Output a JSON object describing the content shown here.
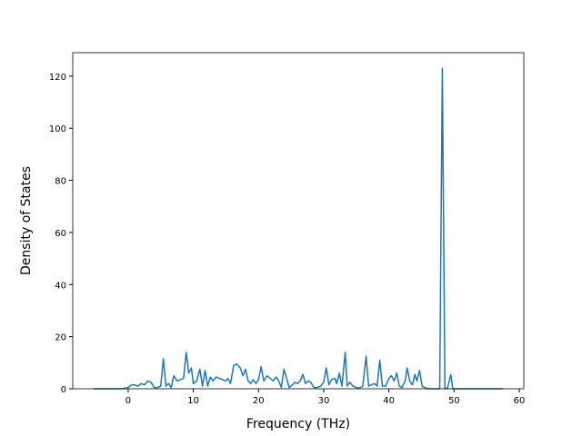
{
  "chart_data": {
    "type": "line",
    "xlabel": "Frequency (THz)",
    "ylabel": "Density of States",
    "x": [
      -5.3,
      -3,
      -1,
      0,
      0.5,
      1,
      1.5,
      2,
      2.5,
      3,
      3.5,
      4,
      4.5,
      5,
      5.4,
      5.8,
      6.2,
      6.6,
      7,
      7.5,
      8,
      8.5,
      8.9,
      9.3,
      9.7,
      10,
      10.5,
      11,
      11.4,
      11.8,
      12.2,
      12.6,
      13,
      13.5,
      14,
      14.5,
      15,
      15.3,
      15.7,
      16.2,
      16.7,
      17.2,
      17.6,
      18,
      18.4,
      18.8,
      19.2,
      19.6,
      20,
      20.4,
      20.8,
      21.3,
      21.8,
      22.2,
      22.7,
      23.1,
      23.5,
      23.9,
      24.3,
      24.7,
      25.2,
      25.6,
      26,
      26.4,
      26.8,
      27.2,
      27.6,
      28,
      28.5,
      29,
      29.5,
      30,
      30.4,
      30.8,
      31.2,
      31.7,
      32,
      32.4,
      32.8,
      33.3,
      33.6,
      34,
      34.5,
      35,
      35.5,
      36,
      36.5,
      36.9,
      37.3,
      37.8,
      38.2,
      38.6,
      39,
      39.5,
      40,
      40.4,
      40.8,
      41.2,
      41.6,
      42,
      42.5,
      42.8,
      43.2,
      43.6,
      44,
      44.3,
      44.7,
      45.1,
      45.5,
      46,
      47,
      47.8,
      48.2,
      48.6,
      49,
      49.5,
      49.8,
      50.5,
      57.5
    ],
    "series": [
      {
        "color": "#1f77b4",
        "values": [
          0,
          0,
          0,
          0.5,
          1.5,
          1.5,
          1,
          2,
          1.5,
          3,
          2.5,
          0.5,
          0.5,
          1,
          11.5,
          1,
          2,
          0.5,
          5,
          3,
          3.5,
          4,
          14,
          6,
          8,
          2,
          3,
          7.5,
          1,
          7,
          1,
          4.5,
          3,
          4.5,
          4,
          3.5,
          3,
          4,
          2,
          9,
          9.5,
          8,
          5,
          7.5,
          3,
          2,
          3.5,
          2,
          3.5,
          8.5,
          3,
          5,
          4,
          3,
          4.5,
          3,
          0.5,
          7.5,
          4,
          0.5,
          1.5,
          2.5,
          2,
          3,
          5.5,
          2,
          3,
          2.5,
          0.5,
          0.5,
          1,
          2.5,
          8,
          1.5,
          3.5,
          4,
          2,
          6,
          1,
          14,
          1,
          2.5,
          1,
          0.5,
          0.3,
          1,
          12.5,
          1,
          1.5,
          2,
          1,
          11,
          1,
          1,
          4,
          5,
          3,
          6,
          1,
          0.5,
          3,
          8,
          3,
          1.5,
          5.5,
          3,
          7,
          1,
          0.5,
          0,
          0,
          0,
          123,
          0,
          0.3,
          5.5,
          0,
          0,
          0
        ]
      }
    ],
    "xlim": [
      -8.5,
      60.7
    ],
    "ylim": [
      0,
      129
    ],
    "xticks": [
      0,
      10,
      20,
      30,
      40,
      50,
      60
    ],
    "yticks": [
      0,
      20,
      40,
      60,
      80,
      100,
      120
    ]
  }
}
